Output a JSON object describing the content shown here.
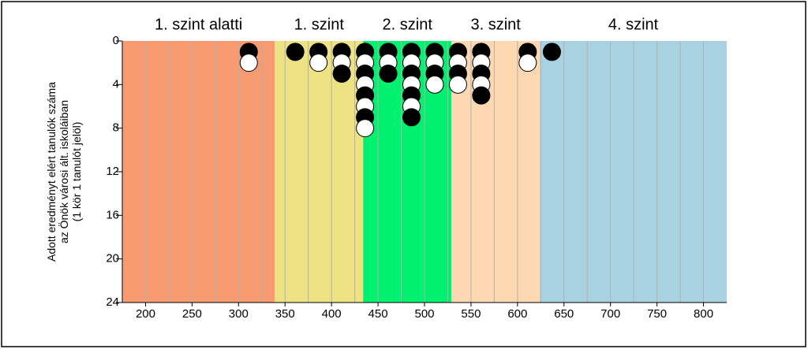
{
  "chart_data": {
    "type": "dot_stack",
    "ylabel": [
      "Adott eredményt elért tanulók száma",
      "az Önök városi ált. iskoláiban",
      "(1 kör 1 tanulót jelöl)"
    ],
    "levels": [
      {
        "label": "1. szint alatti",
        "range": [
          175,
          339
        ],
        "color": "#f99b70"
      },
      {
        "label": "1. szint",
        "range": [
          339,
          434
        ],
        "color": "#ede383"
      },
      {
        "label": "2. szint",
        "range": [
          434,
          529
        ],
        "color": "#00f070"
      },
      {
        "label": "3. szint",
        "range": [
          529,
          624
        ],
        "color": "#fdd8b0"
      },
      {
        "label": "4. szint",
        "range": [
          624,
          825
        ],
        "color": "#a8d2e2"
      }
    ],
    "x": [
      311,
      361,
      386,
      411,
      436,
      461,
      486,
      511,
      536,
      561,
      611,
      637
    ],
    "values": [
      2,
      1,
      2,
      3,
      8,
      3,
      7,
      4,
      4,
      5,
      2,
      1
    ],
    "marker_colors": [
      "#000000",
      "#ffffff"
    ],
    "xlim": [
      175,
      825
    ],
    "xticks": [
      200,
      250,
      300,
      350,
      400,
      450,
      500,
      550,
      600,
      650,
      700,
      750,
      800
    ],
    "xgrid": [
      200,
      225,
      250,
      275,
      300,
      325,
      350,
      375,
      400,
      425,
      450,
      475,
      500,
      525,
      550,
      575,
      600,
      625,
      650,
      675,
      700,
      725,
      750,
      775,
      800
    ],
    "ylim": [
      0,
      24
    ],
    "yticks": [
      0,
      4,
      8,
      12,
      16,
      20,
      24
    ],
    "y_inverted": true
  }
}
